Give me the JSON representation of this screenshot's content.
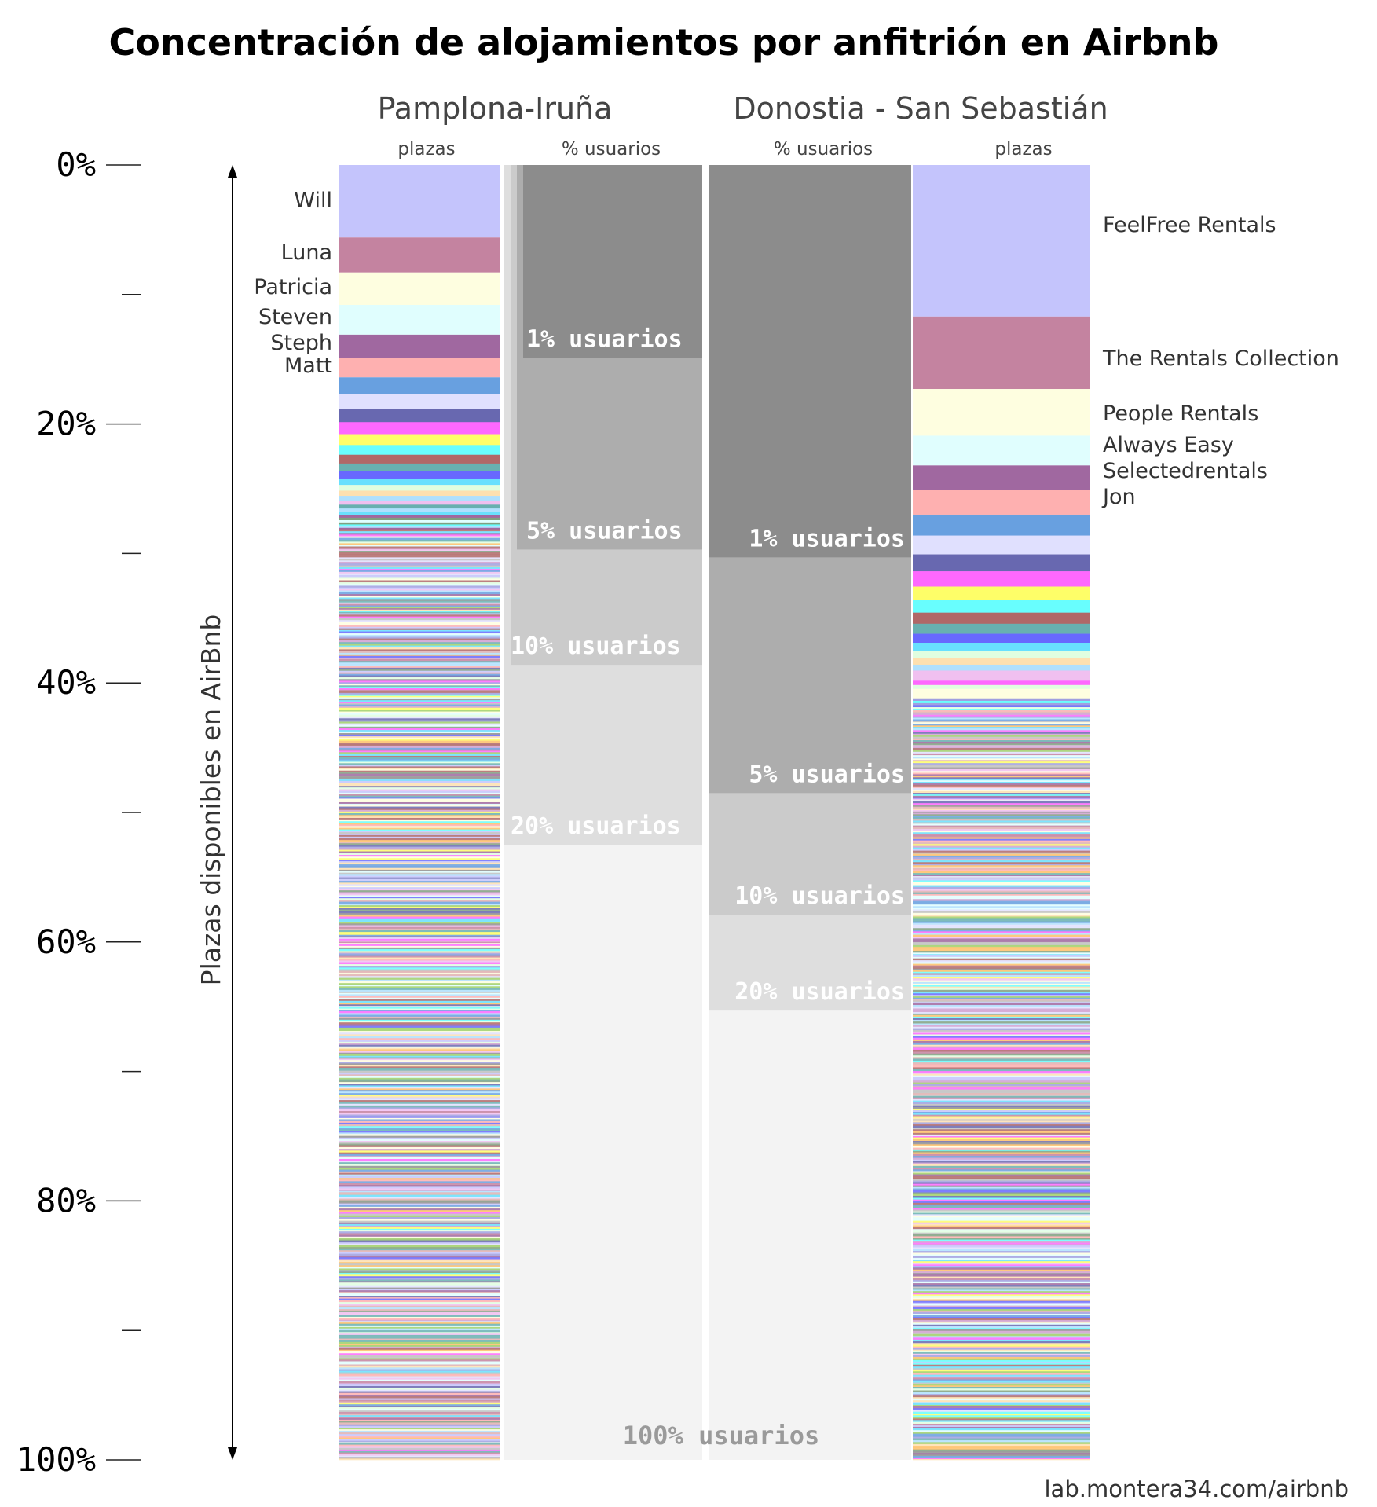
{
  "chart_data": {
    "type": "stacked-bar",
    "title": "Concentración de alojamientos por anfitrión en Airbnb",
    "ylabel": "Plazas disponibles en AirBnb",
    "yticks": [
      "0%",
      "20%",
      "40%",
      "60%",
      "80%",
      "100%"
    ],
    "ylim": [
      0,
      100
    ],
    "credit": "lab.montera34.com/airbnb",
    "palette": [
      "#c4c4fc",
      "#c483a0",
      "#fefee0",
      "#e0fefe",
      "#a068a0",
      "#feb0b0",
      "#68a0e0",
      "#e0e0fe",
      "#6868b0",
      "#fe68fe",
      "#fefe68",
      "#68fefe",
      "#b06868",
      "#68b0b0",
      "#6868fe",
      "#68e0fe",
      "#e0fee0",
      "#fee0b0",
      "#b0e0fe",
      "#f0c0f0",
      "#c0c0c0",
      "#fec068",
      "#a0d068",
      "#909090",
      "#d0a0d0",
      "#a0a0e0",
      "#80a080",
      "#e0b0b0"
    ],
    "cities": [
      {
        "name": "Pamplona-Iruña",
        "plazas_label": "plazas",
        "usuarios_label": "% usuarios",
        "hosts": [
          {
            "name": "Will",
            "share": 5.6
          },
          {
            "name": "Luna",
            "share": 2.7
          },
          {
            "name": "Patricia",
            "share": 2.5
          },
          {
            "name": "Steven",
            "share": 2.3
          },
          {
            "name": "Steph",
            "share": 1.8
          },
          {
            "name": "Matt",
            "share": 1.5
          }
        ],
        "user_groups": [
          {
            "label": "1% usuarios",
            "value": 14.9
          },
          {
            "label": "5% usuarios",
            "value": 29.7
          },
          {
            "label": "10% usuarios",
            "value": 38.6
          },
          {
            "label": "20% usuarios",
            "value": 52.5
          },
          {
            "label": "100% usuarios",
            "value": 100
          }
        ]
      },
      {
        "name": "Donostia - San Sebastián",
        "plazas_label": "plazas",
        "usuarios_label": "% usuarios",
        "hosts": [
          {
            "name": "FeelFree Rentals",
            "share": 11.7
          },
          {
            "name": "The Rentals Collection",
            "share": 5.6
          },
          {
            "name": "People Rentals",
            "share": 3.6
          },
          {
            "name": "Always Easy",
            "share": 2.3
          },
          {
            "name": "Selectedrentals",
            "share": 1.9
          },
          {
            "name": "Jon",
            "share": 1.9
          }
        ],
        "user_groups": [
          {
            "label": "1% usuarios",
            "value": 30.3
          },
          {
            "label": "5% usuarios",
            "value": 48.5
          },
          {
            "label": "10% usuarios",
            "value": 57.9
          },
          {
            "label": "20% usuarios",
            "value": 65.3
          }
        ]
      }
    ]
  }
}
